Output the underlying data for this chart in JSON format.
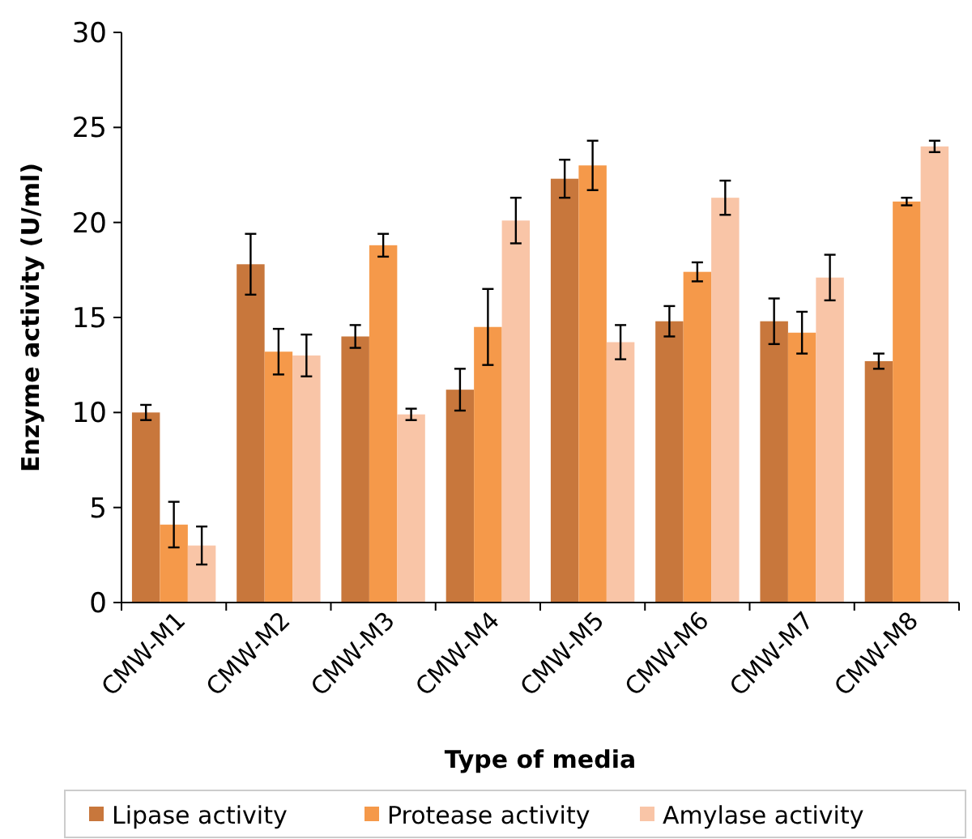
{
  "chart_data": {
    "type": "bar",
    "xlabel": "Type of media",
    "ylabel": "Enzyme activity (U/ml)",
    "categories": [
      "CMW-M1",
      "CMW-M2",
      "CMW-M3",
      "CMW-M4",
      "CMW-M5",
      "CMW-M6",
      "CMW-M7",
      "CMW-M8"
    ],
    "series": [
      {
        "name": "Lipase activity",
        "color": "#c8773c",
        "values": [
          10,
          17.8,
          14,
          11.2,
          22.3,
          14.8,
          14.8,
          12.7
        ],
        "errors": [
          0.4,
          1.6,
          0.6,
          1.1,
          1.0,
          0.8,
          1.2,
          0.4
        ]
      },
      {
        "name": "Protease activity",
        "color": "#f5994a",
        "values": [
          4.1,
          13.2,
          18.8,
          14.5,
          23,
          17.4,
          14.2,
          21.1
        ],
        "errors": [
          1.2,
          1.2,
          0.6,
          2.0,
          1.3,
          0.5,
          1.1,
          0.2
        ]
      },
      {
        "name": "Amylase activity",
        "color": "#f9c5a7",
        "values": [
          3,
          13,
          9.9,
          20.1,
          13.7,
          21.3,
          17.1,
          24
        ],
        "errors": [
          1.0,
          1.1,
          0.3,
          1.2,
          0.9,
          0.9,
          1.2,
          0.3
        ]
      }
    ],
    "ylim": [
      0,
      30
    ],
    "yticks": [
      0,
      5,
      10,
      15,
      20,
      25,
      30
    ],
    "grid": false,
    "legend": "bottom"
  }
}
